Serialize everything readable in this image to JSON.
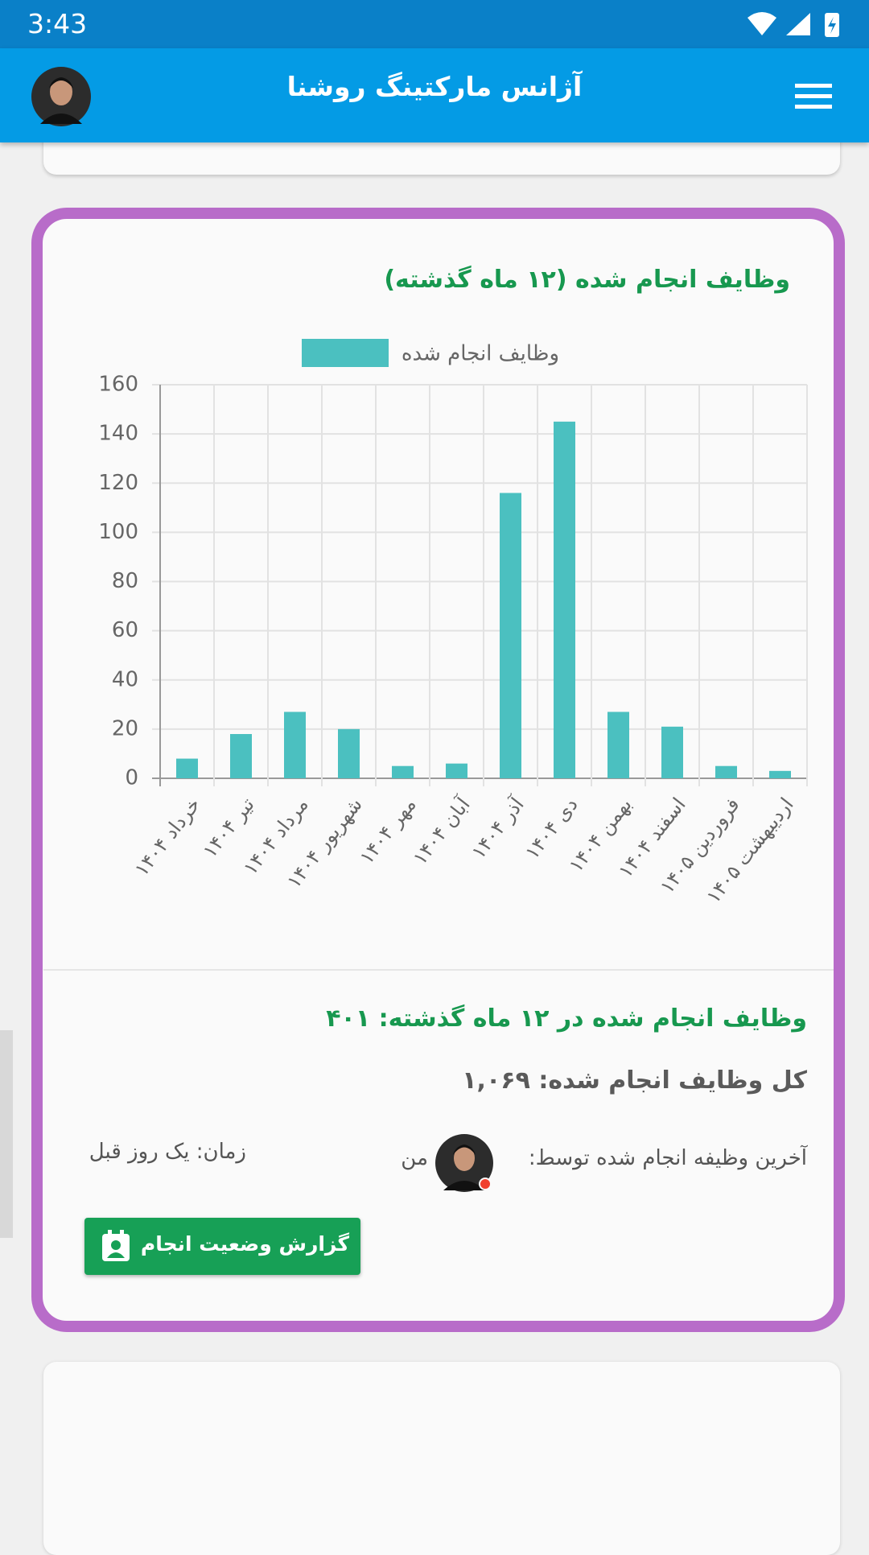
{
  "status_bar": {
    "time": "3:43"
  },
  "app_bar": {
    "title": "آژانس مارکتینگ روشنا"
  },
  "chart_data": {
    "type": "bar",
    "title": "وظایف انجام شده (۱۲ ماه گذشته)",
    "categories": [
      "خرداد ۱۴۰۴",
      "تیر ۱۴۰۴",
      "مرداد ۱۴۰۴",
      "شهریور ۱۴۰۴",
      "مهر ۱۴۰۴",
      "آبان ۱۴۰۴",
      "آذر ۱۴۰۴",
      "دی ۱۴۰۴",
      "بهمن ۱۴۰۴",
      "اسفند ۱۴۰۴",
      "فروردین ۱۴۰۵",
      "اردیبهشت ۱۴۰۵"
    ],
    "series": [
      {
        "name": "وظایف انجام شده",
        "color": "#4bc0c0",
        "values": [
          8,
          18,
          27,
          20,
          5,
          6,
          116,
          145,
          27,
          21,
          5,
          3
        ]
      }
    ],
    "ylim": [
      0,
      160
    ],
    "yticks": [
      0,
      20,
      40,
      60,
      80,
      100,
      120,
      140,
      160
    ],
    "grid": true,
    "legend": "top"
  },
  "summary": {
    "last_12_months": "وظایف انجام شده در ۱۲ ماه گذشته: ۴۰۱",
    "total": "کل وظایف انجام شده: ۱,۰۶۹",
    "last_done_by_label": "آخرین وظیفه انجام شده توسط:",
    "last_done_by": "من",
    "time": "زمان: یک روز قبل"
  },
  "button": {
    "label": "گزارش وضعیت انجام"
  }
}
